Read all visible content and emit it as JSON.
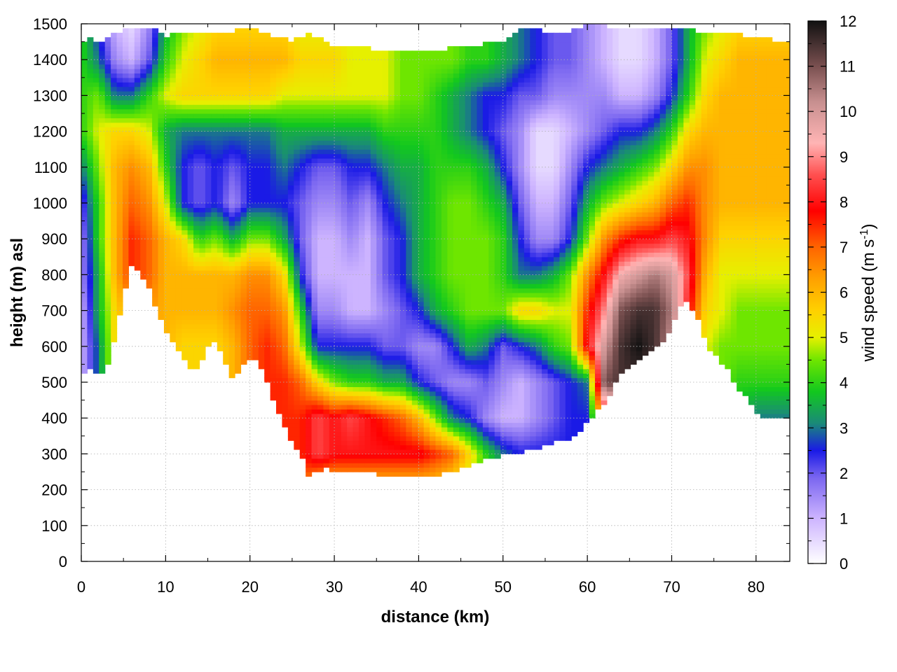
{
  "chart_data": {
    "type": "heatmap",
    "title": "",
    "xlabel": "distance (km)",
    "ylabel": "height (m) asl",
    "xlim": [
      0,
      84
    ],
    "ylim": [
      0,
      1500
    ],
    "x_ticks": [
      0,
      10,
      20,
      30,
      40,
      50,
      60,
      70,
      80
    ],
    "y_ticks": [
      0,
      100,
      200,
      300,
      400,
      500,
      600,
      700,
      800,
      900,
      1000,
      1100,
      1200,
      1300,
      1400,
      1500
    ],
    "grid": true,
    "colorbar": {
      "label_main": "wind speed (m s",
      "label_sup": "-1",
      "label_end": ")",
      "range": [
        0,
        12
      ],
      "ticks": [
        0,
        1,
        2,
        3,
        4,
        5,
        6,
        7,
        8,
        9,
        10,
        11,
        12
      ],
      "colors": [
        {
          "v": 0,
          "c": "#ffffff"
        },
        {
          "v": 1,
          "c": "#cdb4ff"
        },
        {
          "v": 1.9,
          "c": "#7a66f0"
        },
        {
          "v": 2.5,
          "c": "#1a1ae6"
        },
        {
          "v": 3.1,
          "c": "#1a8a78"
        },
        {
          "v": 3.8,
          "c": "#12c81e"
        },
        {
          "v": 4.5,
          "c": "#6ee600"
        },
        {
          "v": 5.0,
          "c": "#e6f000"
        },
        {
          "v": 5.6,
          "c": "#ffd000"
        },
        {
          "v": 6.3,
          "c": "#ffa000"
        },
        {
          "v": 7.0,
          "c": "#ff6400"
        },
        {
          "v": 7.8,
          "c": "#ff0000"
        },
        {
          "v": 8.6,
          "c": "#ff5050"
        },
        {
          "v": 9.3,
          "c": "#ffb4b4"
        },
        {
          "v": 10.2,
          "c": "#c89090"
        },
        {
          "v": 11.0,
          "c": "#7a5050"
        },
        {
          "v": 12,
          "c": "#111111"
        }
      ]
    },
    "terrain_bottom": [
      [
        0,
        520
      ],
      [
        1,
        535
      ],
      [
        2,
        515
      ],
      [
        3,
        540
      ],
      [
        4,
        620
      ],
      [
        5,
        740
      ],
      [
        6,
        825
      ],
      [
        7,
        810
      ],
      [
        8,
        760
      ],
      [
        9,
        700
      ],
      [
        10,
        640
      ],
      [
        11,
        610
      ],
      [
        12,
        580
      ],
      [
        13,
        530
      ],
      [
        14,
        540
      ],
      [
        15,
        600
      ],
      [
        16,
        610
      ],
      [
        17,
        560
      ],
      [
        18,
        510
      ],
      [
        19,
        545
      ],
      [
        20,
        560
      ],
      [
        21,
        555
      ],
      [
        22,
        510
      ],
      [
        23,
        430
      ],
      [
        24,
        380
      ],
      [
        25,
        330
      ],
      [
        26,
        300
      ],
      [
        27,
        240
      ],
      [
        28,
        255
      ],
      [
        29,
        258
      ],
      [
        30,
        252
      ],
      [
        32,
        248
      ],
      [
        34,
        245
      ],
      [
        36,
        242
      ],
      [
        38,
        242
      ],
      [
        40,
        238
      ],
      [
        42,
        240
      ],
      [
        44,
        248
      ],
      [
        46,
        265
      ],
      [
        48,
        285
      ],
      [
        50,
        295
      ],
      [
        52,
        302
      ],
      [
        54,
        315
      ],
      [
        56,
        330
      ],
      [
        58,
        345
      ],
      [
        59,
        360
      ],
      [
        60,
        385
      ],
      [
        61,
        415
      ],
      [
        62,
        440
      ],
      [
        63,
        480
      ],
      [
        64,
        520
      ],
      [
        66,
        560
      ],
      [
        68,
        590
      ],
      [
        69,
        610
      ],
      [
        70,
        660
      ],
      [
        71,
        710
      ],
      [
        72,
        725
      ],
      [
        73,
        680
      ],
      [
        74,
        610
      ],
      [
        75,
        580
      ],
      [
        76,
        555
      ],
      [
        77,
        520
      ],
      [
        78,
        480
      ],
      [
        79,
        460
      ],
      [
        80,
        410
      ],
      [
        81,
        395
      ],
      [
        82,
        400
      ],
      [
        84,
        405
      ]
    ],
    "top_boundary": [
      [
        0,
        1450
      ],
      [
        1,
        1460
      ],
      [
        2,
        1440
      ],
      [
        3,
        1465
      ],
      [
        4,
        1470
      ],
      [
        5,
        1490
      ],
      [
        7,
        1490
      ],
      [
        9,
        1485
      ],
      [
        10,
        1465
      ],
      [
        12,
        1480
      ],
      [
        15,
        1480
      ],
      [
        18,
        1480
      ],
      [
        20,
        1490
      ],
      [
        22,
        1470
      ],
      [
        25,
        1455
      ],
      [
        27,
        1470
      ],
      [
        30,
        1440
      ],
      [
        35,
        1430
      ],
      [
        40,
        1425
      ],
      [
        45,
        1435
      ],
      [
        50,
        1450
      ],
      [
        53,
        1495
      ],
      [
        56,
        1470
      ],
      [
        58,
        1480
      ],
      [
        60,
        1500
      ],
      [
        62,
        1495
      ],
      [
        64,
        1490
      ],
      [
        67,
        1490
      ],
      [
        70,
        1490
      ],
      [
        72,
        1490
      ],
      [
        74,
        1470
      ],
      [
        76,
        1470
      ],
      [
        78,
        1470
      ],
      [
        80,
        1465
      ],
      [
        82,
        1455
      ],
      [
        84,
        1455
      ]
    ],
    "field": {
      "x": [
        0,
        2,
        4,
        6,
        8,
        10,
        12,
        14,
        16,
        18,
        20,
        22,
        24,
        26,
        28,
        30,
        32,
        34,
        36,
        38,
        40,
        42,
        44,
        46,
        48,
        50,
        52,
        54,
        56,
        58,
        60,
        62,
        64,
        66,
        68,
        70,
        72,
        74,
        76,
        78,
        80,
        82,
        84
      ],
      "y": [
        200,
        300,
        400,
        500,
        600,
        700,
        800,
        900,
        1000,
        1100,
        1200,
        1300,
        1400,
        1500
      ],
      "z": [
        [
          3.0,
          3.0,
          5.5,
          6.5,
          6.5,
          6.0,
          5.5,
          5.5,
          5.5,
          6.0,
          7.0,
          7.0,
          7.0,
          7.0,
          5.5,
          5.5,
          5.5,
          5.5,
          5.5,
          5.5,
          5.5,
          5.5,
          5.0,
          4.5,
          4.0,
          3.5,
          3.5,
          3.0,
          3.0,
          3.0,
          3.0,
          3.0,
          4.0,
          4.0,
          4.0,
          4.0,
          4.0,
          4.0,
          4.0,
          4.0,
          4.0,
          4.0,
          4.0
        ],
        [
          3.0,
          3.0,
          5.5,
          6.5,
          6.5,
          6.0,
          5.5,
          5.5,
          5.5,
          6.0,
          7.0,
          7.0,
          7.5,
          7.5,
          8.5,
          8.0,
          8.0,
          8.0,
          8.0,
          8.0,
          8.0,
          7.5,
          7.0,
          5.5,
          4.0,
          3.0,
          2.5,
          2.5,
          2.5,
          2.5,
          2.5,
          3.0,
          4.0,
          4.0,
          4.0,
          4.0,
          4.0,
          4.0,
          4.0,
          4.0,
          4.0,
          4.0,
          4.0
        ],
        [
          3.0,
          3.0,
          5.5,
          6.5,
          6.5,
          6.0,
          5.5,
          5.5,
          5.5,
          6.0,
          7.0,
          7.5,
          7.5,
          7.5,
          8.5,
          8.0,
          8.5,
          8.0,
          7.5,
          7.0,
          6.0,
          4.5,
          3.0,
          2.5,
          1.5,
          1.0,
          1.0,
          1.5,
          2.0,
          2.5,
          2.5,
          7.5,
          8.0,
          8.0,
          8.0,
          7.0,
          5.0,
          4.0,
          4.0,
          3.5,
          3.0,
          3.0,
          3.0
        ],
        [
          1.0,
          3.0,
          5.5,
          6.5,
          6.5,
          6.0,
          5.5,
          5.5,
          5.5,
          6.0,
          7.0,
          7.5,
          7.5,
          7.0,
          5.5,
          4.5,
          4.0,
          4.0,
          3.5,
          3.5,
          2.5,
          2.0,
          1.5,
          1.5,
          2.0,
          1.5,
          1.0,
          1.5,
          2.0,
          2.5,
          3.0,
          11.0,
          11.5,
          11.5,
          11.0,
          9.5,
          7.0,
          5.0,
          4.5,
          4.0,
          4.0,
          4.0,
          4.0
        ],
        [
          1.0,
          3.0,
          5.5,
          6.5,
          6.5,
          6.0,
          5.5,
          5.5,
          5.5,
          6.0,
          7.0,
          7.5,
          7.0,
          5.0,
          2.5,
          2.5,
          2.5,
          2.5,
          2.0,
          2.0,
          1.5,
          1.5,
          2.5,
          3.5,
          3.0,
          2.0,
          2.5,
          3.0,
          4.0,
          4.5,
          8.0,
          10.0,
          11.5,
          12.0,
          11.5,
          10.0,
          7.5,
          5.0,
          4.5,
          4.5,
          4.5,
          4.5,
          4.5
        ],
        [
          1.0,
          3.5,
          5.5,
          6.5,
          6.5,
          6.0,
          6.0,
          6.0,
          6.0,
          6.5,
          7.0,
          7.0,
          6.5,
          4.0,
          1.5,
          1.5,
          1.0,
          1.0,
          1.5,
          2.0,
          2.5,
          3.5,
          4.0,
          4.5,
          4.5,
          4.5,
          5.5,
          5.5,
          5.0,
          5.0,
          7.5,
          9.0,
          11.0,
          11.5,
          11.5,
          10.5,
          8.0,
          5.5,
          5.0,
          4.5,
          4.5,
          4.5,
          4.5
        ],
        [
          1.5,
          3.5,
          6.0,
          7.5,
          7.0,
          6.0,
          6.0,
          6.0,
          6.0,
          6.0,
          6.5,
          6.5,
          5.5,
          2.5,
          1.0,
          1.0,
          1.0,
          1.0,
          2.0,
          2.5,
          3.5,
          4.0,
          4.5,
          4.5,
          4.5,
          4.0,
          3.0,
          3.0,
          3.5,
          4.5,
          6.5,
          8.0,
          9.5,
          10.0,
          10.5,
          10.0,
          8.5,
          6.0,
          5.0,
          5.0,
          5.0,
          5.0,
          5.0
        ],
        [
          1.5,
          4.0,
          6.0,
          7.5,
          7.0,
          6.0,
          5.5,
          4.0,
          4.5,
          3.5,
          4.5,
          4.5,
          3.5,
          2.0,
          1.0,
          1.0,
          1.5,
          1.0,
          2.0,
          2.5,
          3.5,
          4.0,
          4.5,
          4.5,
          4.5,
          4.0,
          2.5,
          1.5,
          1.5,
          2.5,
          4.5,
          6.5,
          7.5,
          8.0,
          8.0,
          8.5,
          8.0,
          6.5,
          5.5,
          5.5,
          5.5,
          5.5,
          5.5
        ],
        [
          2.0,
          4.0,
          6.0,
          7.0,
          6.5,
          5.0,
          2.5,
          2.0,
          2.5,
          1.5,
          2.5,
          2.5,
          2.5,
          2.0,
          1.5,
          1.5,
          2.0,
          1.5,
          2.5,
          3.0,
          3.5,
          4.0,
          4.5,
          4.5,
          4.0,
          3.5,
          2.0,
          1.0,
          1.0,
          2.0,
          3.5,
          4.5,
          5.0,
          5.5,
          6.0,
          7.0,
          7.5,
          6.5,
          6.0,
          6.0,
          6.0,
          6.0,
          6.0
        ],
        [
          3.0,
          4.5,
          6.0,
          6.5,
          6.0,
          4.0,
          2.5,
          2.0,
          2.5,
          2.0,
          2.5,
          2.5,
          3.0,
          2.5,
          2.0,
          2.0,
          2.5,
          2.5,
          3.0,
          3.5,
          3.5,
          4.0,
          4.0,
          4.0,
          3.5,
          2.5,
          1.5,
          0.5,
          0.5,
          1.5,
          2.5,
          3.0,
          3.5,
          4.0,
          4.5,
          5.5,
          6.5,
          6.5,
          6.0,
          6.0,
          6.0,
          6.0,
          6.0
        ],
        [
          4.0,
          5.0,
          5.5,
          5.5,
          5.0,
          3.5,
          3.0,
          3.0,
          3.0,
          3.0,
          3.0,
          3.0,
          3.5,
          3.5,
          3.5,
          3.5,
          3.5,
          3.5,
          4.0,
          4.0,
          4.0,
          4.0,
          3.5,
          3.0,
          2.5,
          2.0,
          1.5,
          0.5,
          0.5,
          1.0,
          1.5,
          2.0,
          2.5,
          2.5,
          3.0,
          4.0,
          5.5,
          6.0,
          6.0,
          6.0,
          6.0,
          6.0,
          6.0
        ],
        [
          4.0,
          4.5,
          3.0,
          3.0,
          4.0,
          5.0,
          5.5,
          5.5,
          5.5,
          5.5,
          5.5,
          5.5,
          5.0,
          5.0,
          5.0,
          5.0,
          5.0,
          5.0,
          5.0,
          4.5,
          4.5,
          4.0,
          3.5,
          3.0,
          2.5,
          2.5,
          2.0,
          2.0,
          1.5,
          1.5,
          1.5,
          1.5,
          1.0,
          1.0,
          1.5,
          2.5,
          4.0,
          5.5,
          6.0,
          6.0,
          6.0,
          6.0,
          6.0
        ],
        [
          4.0,
          3.0,
          1.5,
          1.0,
          2.0,
          4.0,
          5.0,
          5.5,
          6.0,
          6.0,
          6.0,
          6.0,
          6.0,
          5.5,
          5.5,
          5.5,
          5.0,
          5.0,
          5.0,
          4.5,
          4.5,
          4.5,
          4.5,
          4.0,
          4.0,
          3.5,
          3.0,
          2.5,
          2.0,
          2.0,
          1.5,
          1.0,
          0.5,
          0.5,
          1.0,
          2.0,
          3.5,
          5.0,
          5.5,
          6.0,
          6.0,
          6.0,
          6.0
        ],
        [
          4.0,
          2.5,
          1.0,
          0.5,
          1.5,
          3.5,
          4.5,
          5.0,
          5.5,
          5.5,
          5.5,
          5.5,
          5.5,
          5.0,
          5.0,
          5.0,
          5.0,
          5.0,
          5.0,
          4.5,
          4.5,
          4.5,
          4.5,
          4.0,
          4.0,
          3.5,
          3.0,
          2.5,
          2.0,
          2.0,
          1.5,
          1.0,
          0.5,
          0.5,
          1.0,
          2.0,
          3.5,
          4.5,
          5.0,
          5.5,
          5.5,
          5.5,
          5.5
        ]
      ]
    }
  }
}
